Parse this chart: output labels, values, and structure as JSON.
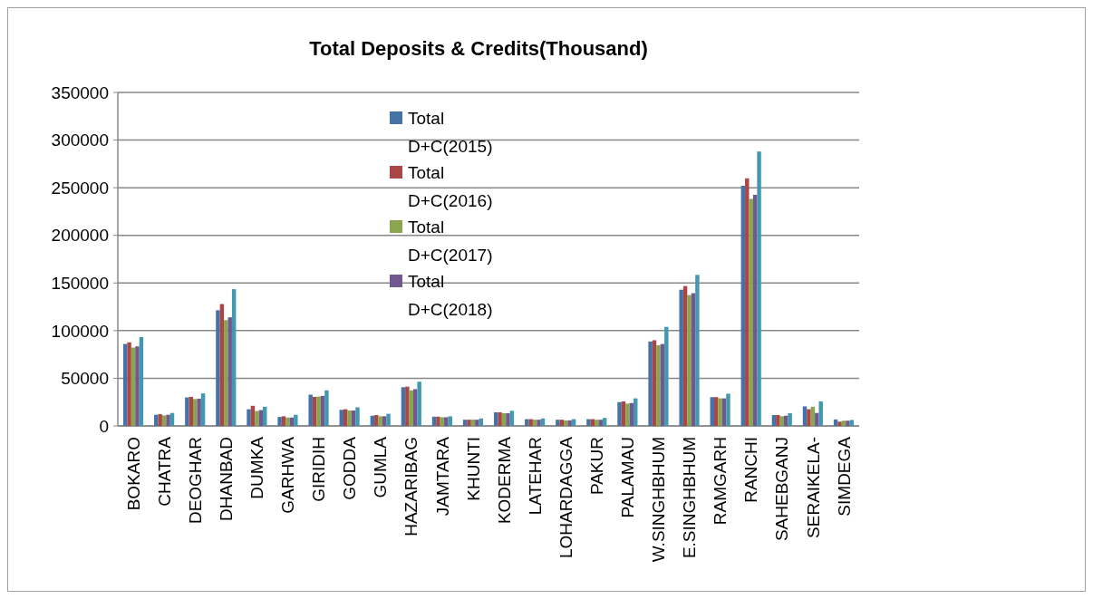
{
  "chart_data": {
    "type": "bar",
    "title": "Total Deposits & Credits(Thousand)",
    "categories": [
      "BOKARO",
      "CHATRA",
      "DEOGHAR",
      "DHANBAD",
      "DUMKA",
      "GARHWA",
      "GIRIDIH",
      "GODDA",
      "GUMLA",
      "HAZARIBAG",
      "JAMTARA",
      "KHUNTI",
      "KODERMA",
      "LATEHAR",
      "LOHARDAGGA",
      "PAKUR",
      "PALAMAU",
      "W.SINGHBHUM",
      "E.SINGHBHUM",
      "RAMGARH",
      "RANCHI",
      "SAHEBGANJ",
      "SERAIKELA-",
      "SIMDEGA"
    ],
    "series": [
      {
        "name": "Total D+C(2015)",
        "color": "#4572a7",
        "values": [
          86000,
          11700,
          29900,
          121400,
          17500,
          9400,
          32800,
          16900,
          10700,
          40600,
          9700,
          6500,
          14300,
          7100,
          6500,
          7100,
          25000,
          88600,
          142900,
          30200,
          252000,
          11400,
          20500,
          6800
        ]
      },
      {
        "name": "Total D+C(2016)",
        "color": "#aa4643",
        "values": [
          87700,
          12300,
          30500,
          127900,
          21100,
          10100,
          30500,
          17500,
          11400,
          41200,
          9700,
          6500,
          14300,
          7100,
          6500,
          7100,
          25700,
          89900,
          146800,
          30200,
          259800,
          11400,
          17500,
          4500
        ]
      },
      {
        "name": "Total D+C(2017)",
        "color": "#89a54e",
        "values": [
          82200,
          11000,
          28200,
          111000,
          15600,
          8800,
          30800,
          16200,
          10100,
          37300,
          9100,
          6500,
          13300,
          6500,
          5800,
          6500,
          23400,
          84700,
          137300,
          28900,
          238300,
          10100,
          20100,
          5500
        ]
      },
      {
        "name": "Total D+C(2018)",
        "color": "#71588f",
        "values": [
          83500,
          11700,
          28600,
          114000,
          16600,
          8800,
          31500,
          16200,
          10100,
          38600,
          9100,
          6500,
          13300,
          6500,
          5800,
          6500,
          24000,
          86000,
          139300,
          28900,
          242600,
          10700,
          13600,
          5500
        ]
      },
      {
        "color": "#4198af",
        "values": [
          93200,
          13600,
          34100,
          143500,
          20100,
          11700,
          37300,
          19500,
          12700,
          46400,
          10100,
          7800,
          15900,
          7800,
          7100,
          8400,
          28900,
          103900,
          158500,
          33800,
          288000,
          13300,
          25700,
          6200
        ]
      }
    ],
    "ylim": [
      0,
      350000
    ],
    "yticks": [
      0,
      50000,
      100000,
      150000,
      200000,
      250000,
      300000,
      350000
    ],
    "grid": "y",
    "legend": "top"
  }
}
